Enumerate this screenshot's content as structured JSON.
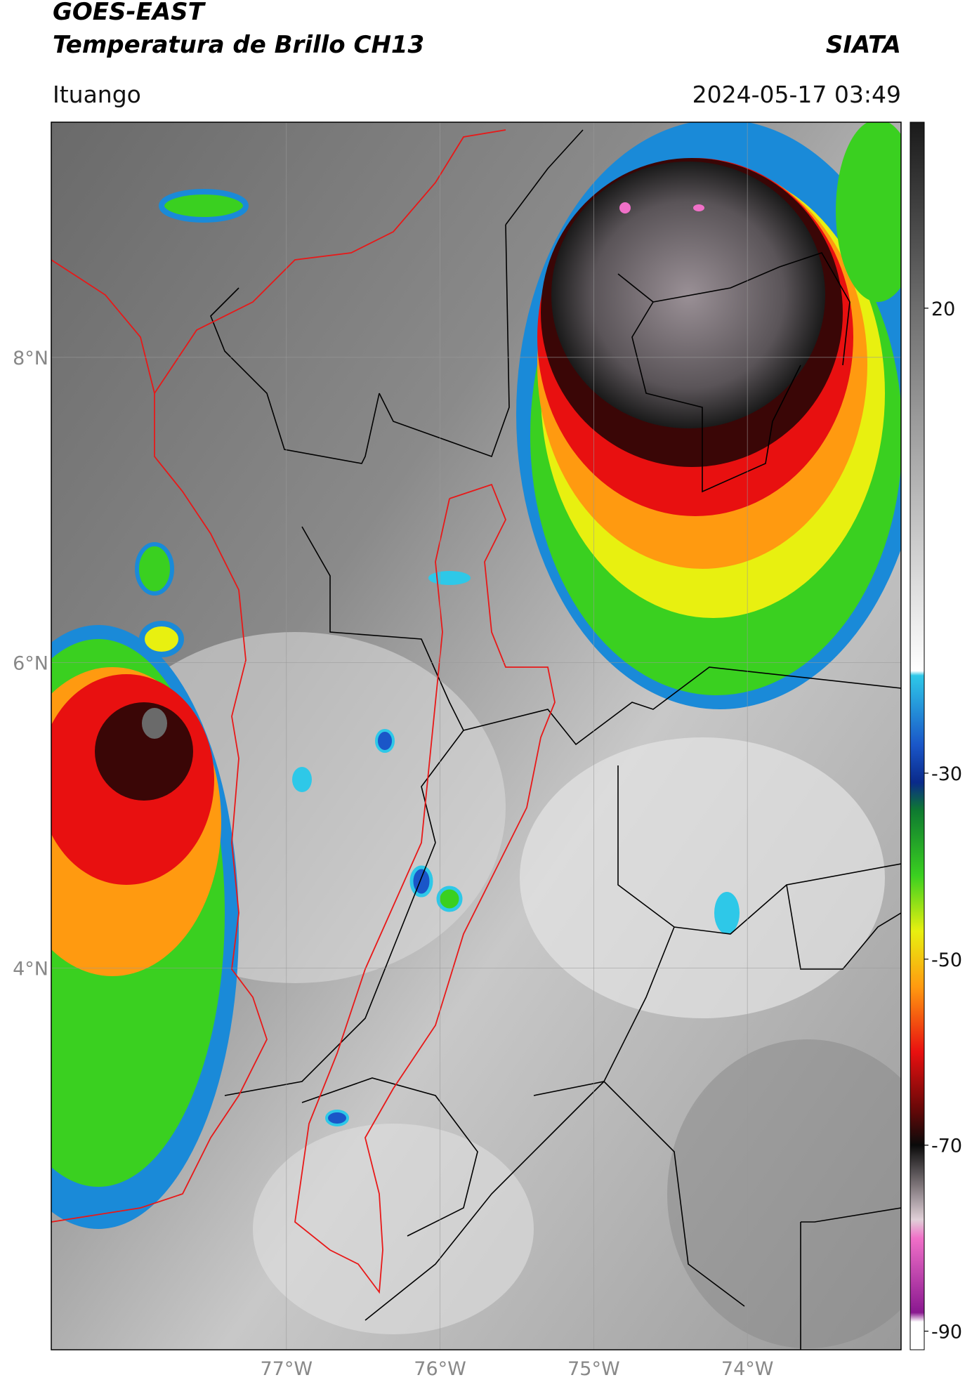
{
  "header": {
    "title": "GOES-EAST",
    "subtitle": "Temperatura de Brillo CH13",
    "source": "SIATA",
    "region": "Ituango",
    "timestamp": "2024-05-17 03:49"
  },
  "map": {
    "lonlim": [
      -78.53,
      -73.0
    ],
    "latlim": [
      1.5,
      9.54
    ],
    "lat_ticks": [
      {
        "value": 8,
        "label": "8°N"
      },
      {
        "value": 6,
        "label": "6°N"
      },
      {
        "value": 4,
        "label": "4°N"
      }
    ],
    "lon_ticks": [
      {
        "value": -77,
        "label": "77°W"
      },
      {
        "value": -76,
        "label": "76°W"
      },
      {
        "value": -75,
        "label": "75°W"
      },
      {
        "value": -74,
        "label": "74°W"
      }
    ],
    "grid": true
  },
  "colorbar": {
    "clim": [
      -92,
      40
    ],
    "ticks": [
      20,
      -30,
      -50,
      -70,
      -90
    ],
    "stops": [
      {
        "value": 40,
        "color": "#1a1a1a"
      },
      {
        "value": 20,
        "color": "#6e6e6e"
      },
      {
        "value": -19,
        "color": "#ffffff"
      },
      {
        "value": -19.5,
        "color": "#2ec8e8"
      },
      {
        "value": -27,
        "color": "#1a56c8"
      },
      {
        "value": -31,
        "color": "#0a2a8a"
      },
      {
        "value": -34,
        "color": "#0e7a30"
      },
      {
        "value": -41,
        "color": "#3ad020"
      },
      {
        "value": -47,
        "color": "#e8f010"
      },
      {
        "value": -53,
        "color": "#ff9a10"
      },
      {
        "value": -60,
        "color": "#e81010"
      },
      {
        "value": -66,
        "color": "#6a0808"
      },
      {
        "value": -70,
        "color": "#0a0a0a"
      },
      {
        "value": -78,
        "color": "#e0d0d8"
      },
      {
        "value": -80,
        "color": "#f070c8"
      },
      {
        "value": -88,
        "color": "#8a1890"
      },
      {
        "value": -89,
        "color": "#ffffff"
      },
      {
        "value": -92,
        "color": "#ffffff"
      }
    ]
  }
}
